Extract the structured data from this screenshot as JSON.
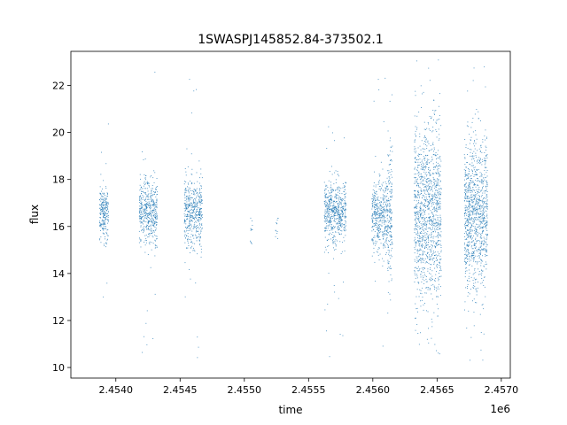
{
  "chart_data": {
    "type": "scatter",
    "title": "1SWASPJ145852.84-373502.1",
    "xlabel": "time",
    "ylabel": "flux",
    "x_offset_label": "1e6",
    "xlim": [
      2.45365,
      2.45707
    ],
    "ylim": [
      9.55,
      23.45
    ],
    "x_ticks": [
      2.454,
      2.4545,
      2.455,
      2.4555,
      2.456,
      2.4565,
      2.457
    ],
    "x_tick_labels": [
      "2.4540",
      "2.4545",
      "2.4550",
      "2.4555",
      "2.4560",
      "2.4565",
      "2.4570"
    ],
    "y_ticks": [
      10,
      12,
      14,
      16,
      18,
      20,
      22
    ],
    "y_tick_labels": [
      "10",
      "12",
      "14",
      "16",
      "18",
      "20",
      "22"
    ],
    "grid": false,
    "point_color": "#1f77b4",
    "segments": [
      {
        "x_start": 2.45387,
        "x_end": 2.45394,
        "center": 16.6,
        "spread": 0.55,
        "min": 10.4,
        "max": 20.8,
        "density": 6
      },
      {
        "x_start": 2.45418,
        "x_end": 2.45432,
        "center": 16.6,
        "spread": 0.7,
        "min": 10.2,
        "max": 22.9,
        "density": 6
      },
      {
        "x_start": 2.45453,
        "x_end": 2.45467,
        "center": 16.6,
        "spread": 0.75,
        "min": 10.4,
        "max": 22.9,
        "density": 6
      },
      {
        "x_start": 2.45504,
        "x_end": 2.45506,
        "center": 16.0,
        "spread": 0.35,
        "min": 14.0,
        "max": 17.4,
        "density": 1
      },
      {
        "x_start": 2.45524,
        "x_end": 2.45526,
        "center": 16.2,
        "spread": 0.5,
        "min": 15.5,
        "max": 18.0,
        "density": 1
      },
      {
        "x_start": 2.45562,
        "x_end": 2.45579,
        "center": 16.6,
        "spread": 0.65,
        "min": 10.3,
        "max": 20.7,
        "density": 6
      },
      {
        "x_start": 2.45599,
        "x_end": 2.45611,
        "center": 16.5,
        "spread": 0.8,
        "min": 10.3,
        "max": 22.6,
        "density": 6
      },
      {
        "x_start": 2.45611,
        "x_end": 2.45615,
        "center": 16.5,
        "spread": 1.5,
        "min": 11.0,
        "max": 22.6,
        "density": 8
      },
      {
        "x_start": 2.45632,
        "x_end": 2.45653,
        "center": 16.5,
        "spread": 1.9,
        "min": 10.1,
        "max": 23.1,
        "density": 10
      },
      {
        "x_start": 2.45671,
        "x_end": 2.45689,
        "center": 16.6,
        "spread": 1.6,
        "min": 10.1,
        "max": 23.1,
        "density": 10
      }
    ]
  }
}
